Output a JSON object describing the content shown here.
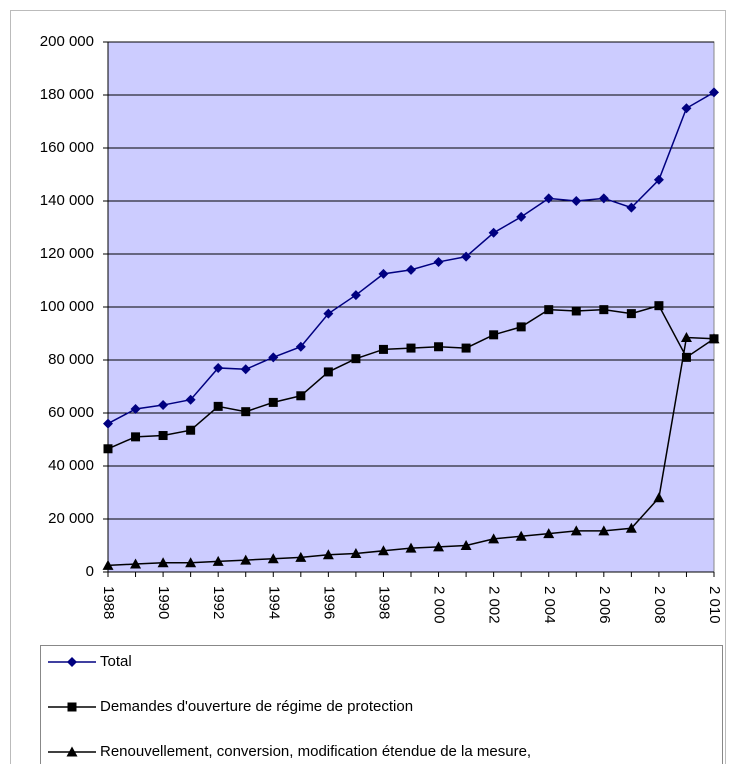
{
  "chart_data": {
    "type": "line",
    "x": [
      1988,
      1989,
      1990,
      1991,
      1992,
      1993,
      1994,
      1995,
      1996,
      1997,
      1998,
      1999,
      2000,
      2001,
      2002,
      2003,
      2004,
      2005,
      2006,
      2007,
      2008,
      2009,
      2010
    ],
    "xlim": [
      1988,
      2010
    ],
    "xticks": [
      1988,
      1990,
      1992,
      1994,
      1996,
      1998,
      {
        "value": 2000,
        "label": "2 000"
      },
      {
        "value": 2002,
        "label": "2 002"
      },
      {
        "value": 2004,
        "label": "2 004"
      },
      {
        "value": 2006,
        "label": "2 006"
      },
      {
        "value": 2008,
        "label": "2 008"
      },
      {
        "value": 2010,
        "label": "2 010"
      }
    ],
    "ylim": [
      0,
      200000
    ],
    "yticks": [
      0,
      {
        "value": 20000,
        "label": "20 000"
      },
      {
        "value": 40000,
        "label": "40 000"
      },
      {
        "value": 60000,
        "label": "60 000"
      },
      {
        "value": 80000,
        "label": "80 000"
      },
      {
        "value": 100000,
        "label": "100 000"
      },
      {
        "value": 120000,
        "label": "120 000"
      },
      {
        "value": 140000,
        "label": "140 000"
      },
      {
        "value": 160000,
        "label": "160 000"
      },
      {
        "value": 180000,
        "label": "180 000"
      },
      {
        "value": 200000,
        "label": "200 000"
      }
    ],
    "grid": true,
    "background": "#ccccff",
    "series": [
      {
        "name": "Total",
        "color": "#000080",
        "marker": "diamond",
        "values": [
          56000,
          61500,
          63000,
          65000,
          77000,
          76500,
          81000,
          85000,
          97500,
          104500,
          112500,
          114000,
          117000,
          119000,
          128000,
          134000,
          141000,
          140000,
          141000,
          137500,
          148000,
          175000,
          181000
        ]
      },
      {
        "name": "Demandes d'ouverture de régime de protection",
        "color": "#000000",
        "marker": "square",
        "values": [
          46500,
          51000,
          51500,
          53500,
          62500,
          60500,
          64000,
          66500,
          75500,
          80500,
          84000,
          84500,
          85000,
          84500,
          89500,
          92500,
          99000,
          98500,
          99000,
          97500,
          100500,
          81000,
          88000
        ]
      },
      {
        "name": "Renouvellement, conversion, modification étendue de la mesure,",
        "color": "#000000",
        "marker": "triangle",
        "values": [
          2500,
          3000,
          3500,
          3500,
          4000,
          4500,
          5000,
          5500,
          6500,
          7000,
          8000,
          9000,
          9500,
          10000,
          12500,
          13500,
          14500,
          15500,
          15500,
          16500,
          28000,
          88500,
          88000
        ]
      }
    ]
  }
}
